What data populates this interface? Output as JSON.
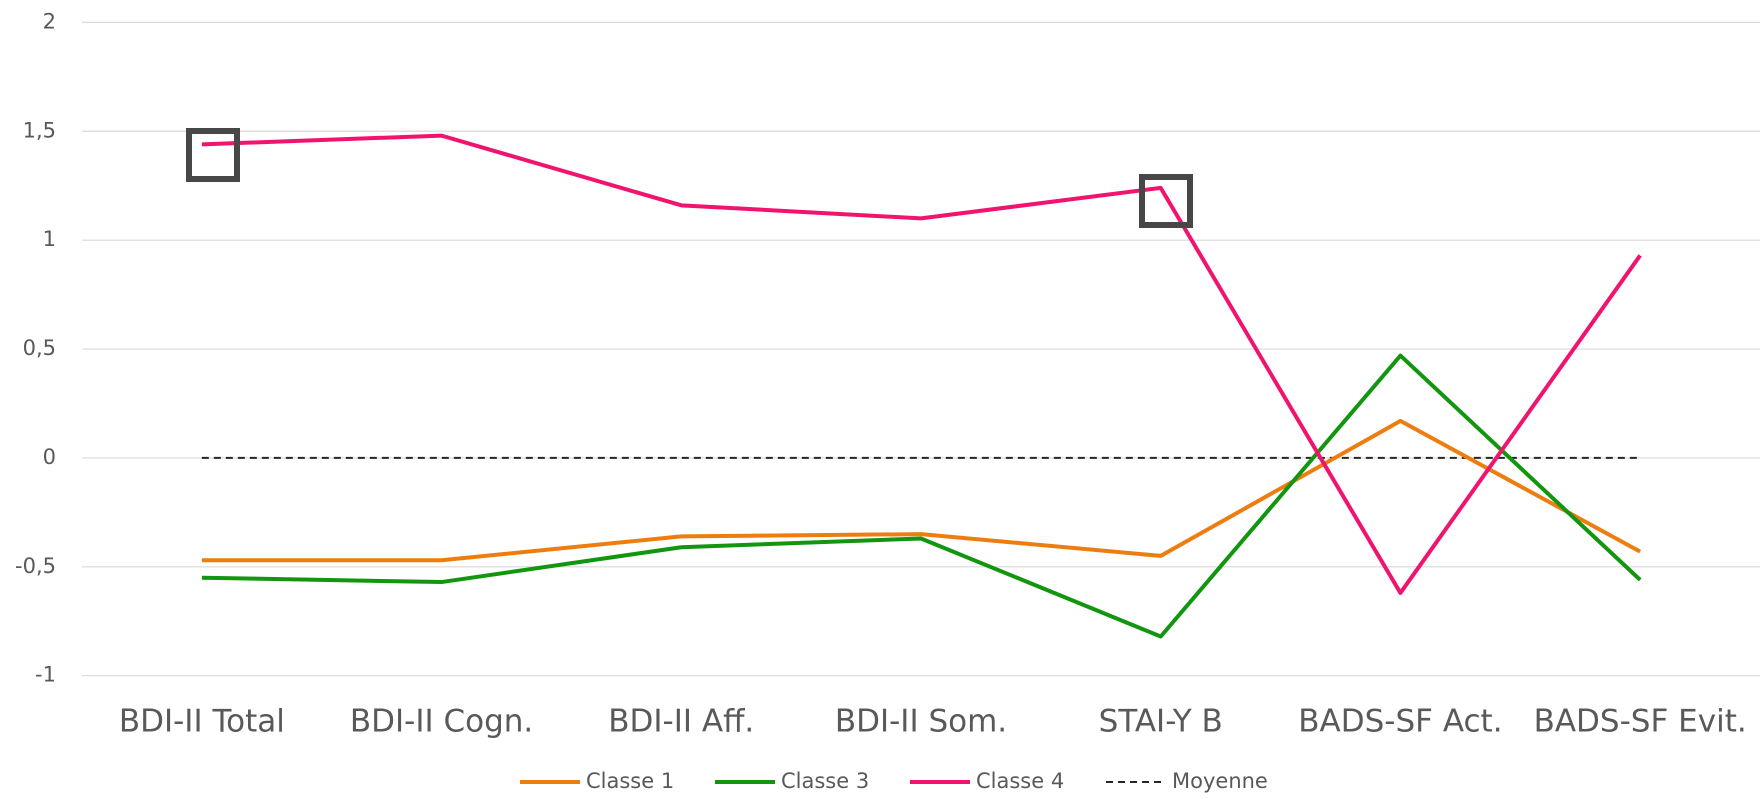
{
  "chart_data": {
    "type": "line",
    "categories": [
      "BDI-II Total",
      "BDI-II Cogn.",
      "BDI-II Aff.",
      "BDI-II Som.",
      "STAI-Y B",
      "BADS-SF Act.",
      "BADS-SF Evit."
    ],
    "series": [
      {
        "name": "Classe 1",
        "color": "#ed7d0f",
        "values": [
          -0.47,
          -0.47,
          -0.36,
          -0.35,
          -0.45,
          0.17,
          -0.43
        ]
      },
      {
        "name": "Classe 3",
        "color": "#12960f",
        "values": [
          -0.55,
          -0.57,
          -0.41,
          -0.37,
          -0.82,
          0.47,
          -0.56
        ]
      },
      {
        "name": "Classe 4",
        "color": "#f0146e",
        "values": [
          1.44,
          1.48,
          1.16,
          1.1,
          1.24,
          -0.62,
          0.93
        ]
      },
      {
        "name": "Moyenne",
        "color": "#262626",
        "dashed": true,
        "values": [
          0,
          0,
          0,
          0,
          0,
          0,
          0
        ]
      }
    ],
    "ylim": [
      -1,
      2
    ],
    "yticks": [
      {
        "value": -1,
        "label": "-1"
      },
      {
        "value": -0.5,
        "label": "-0,5"
      },
      0,
      {
        "value": 0.5,
        "label": "0,5"
      },
      1,
      {
        "value": 1.5,
        "label": "1,5"
      },
      2
    ],
    "grid": true,
    "legend": "bottom"
  }
}
